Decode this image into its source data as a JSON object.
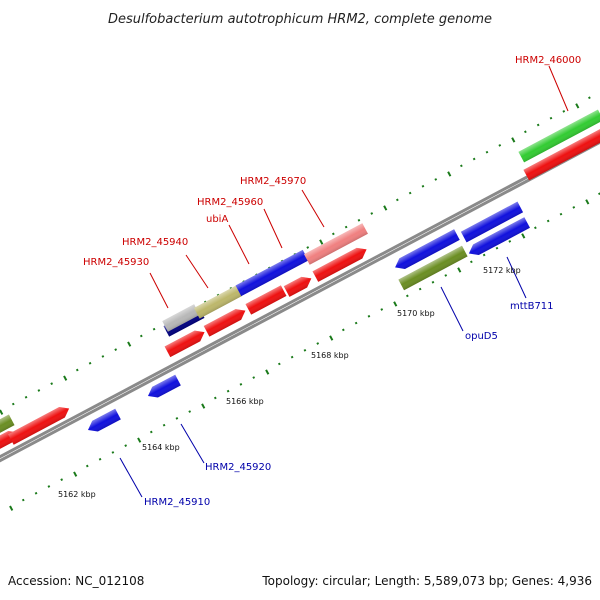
{
  "title": "Desulfobacterium autotrophicum HRM2, complete genome",
  "footer": {
    "accession": "Accession: NC_012108",
    "topology": "Topology: circular; Length: 5,589,073 bp; Genes: 4,936"
  },
  "colors": {
    "backbone": "#8a8a8a",
    "tick": "#1a7a1a",
    "red_gene": "#ee1111",
    "blue_gene": "#1111dd",
    "green_gene": "#33cc33",
    "olive_gene": "#6b8e23",
    "pink_gene": "#f08080",
    "khaki_gene": "#bdb76b",
    "grey_gene": "#b8b8b8",
    "navy_gene": "#000080",
    "label_red": "#cc0000",
    "label_blue": "#0000aa"
  },
  "kbp_labels": [
    "5162 kbp",
    "5164 kbp",
    "5166 kbp",
    "5168 kbp",
    "5170 kbp",
    "5172 kbp"
  ],
  "gene_labels_top": [
    "HRM2_45930",
    "HRM2_45940",
    "ubiA",
    "HRM2_45960",
    "HRM2_45970",
    "HRM2_46000"
  ],
  "gene_labels_bottom": [
    "HRM2_45910",
    "HRM2_45920",
    "opuD5",
    "mttB711"
  ]
}
